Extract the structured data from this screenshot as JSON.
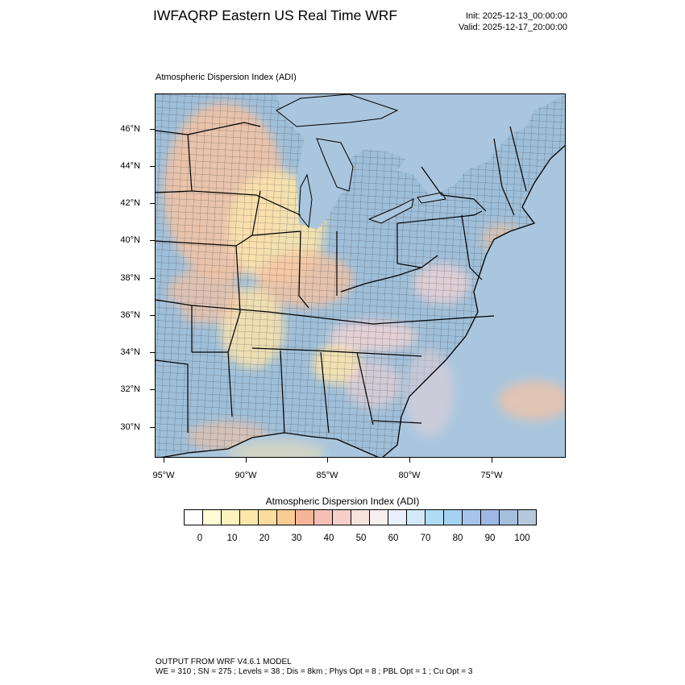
{
  "header": {
    "title": "IWFAQRP Eastern US Real Time WRF",
    "init": "Init: 2025-12-13_00:00:00",
    "valid": "Valid: 2025-12-17_20:00:00"
  },
  "map": {
    "subtitle": "Atmospheric Dispersion Index   (ADI)",
    "lat_labels": [
      "46°N",
      "44°N",
      "42°N",
      "40°N",
      "38°N",
      "36°N",
      "34°N",
      "32°N",
      "30°N"
    ],
    "lon_labels": [
      "95°W",
      "90°W",
      "85°W",
      "80°W",
      "75°W"
    ],
    "colors": {
      "water": "#a9c6de",
      "land_blue": "#9fbfd9",
      "land_orange": "#f6c3a3",
      "land_yellow": "#fbe4ad",
      "land_pink": "#f3d4d4",
      "borders": "#000000"
    }
  },
  "colorbar": {
    "title": "Atmospheric Dispersion Index  (ADI)",
    "colors": [
      "#ffffff",
      "#fefbd6",
      "#fdf1bd",
      "#fce7ab",
      "#fbdb9e",
      "#f9cc96",
      "#f6b598",
      "#f4c0b6",
      "#f5cfc8",
      "#f8e2dc",
      "#f8f0f0",
      "#eaf0fb",
      "#d3e9f9",
      "#b0ddf5",
      "#a6d2f1",
      "#a8c4ec",
      "#9fb8e3",
      "#a7bddc",
      "#b5c8dc"
    ],
    "labels": [
      "0",
      "10",
      "20",
      "30",
      "40",
      "50",
      "60",
      "70",
      "80",
      "90",
      "100"
    ]
  },
  "footer": {
    "line1": "OUTPUT FROM WRF V4.6.1 MODEL",
    "line2": "WE = 310 ; SN = 275 ; Levels = 38 ; Dis = 8km ; Phys Opt = 8 ; PBL Opt = 1 ; Cu Opt = 3"
  }
}
